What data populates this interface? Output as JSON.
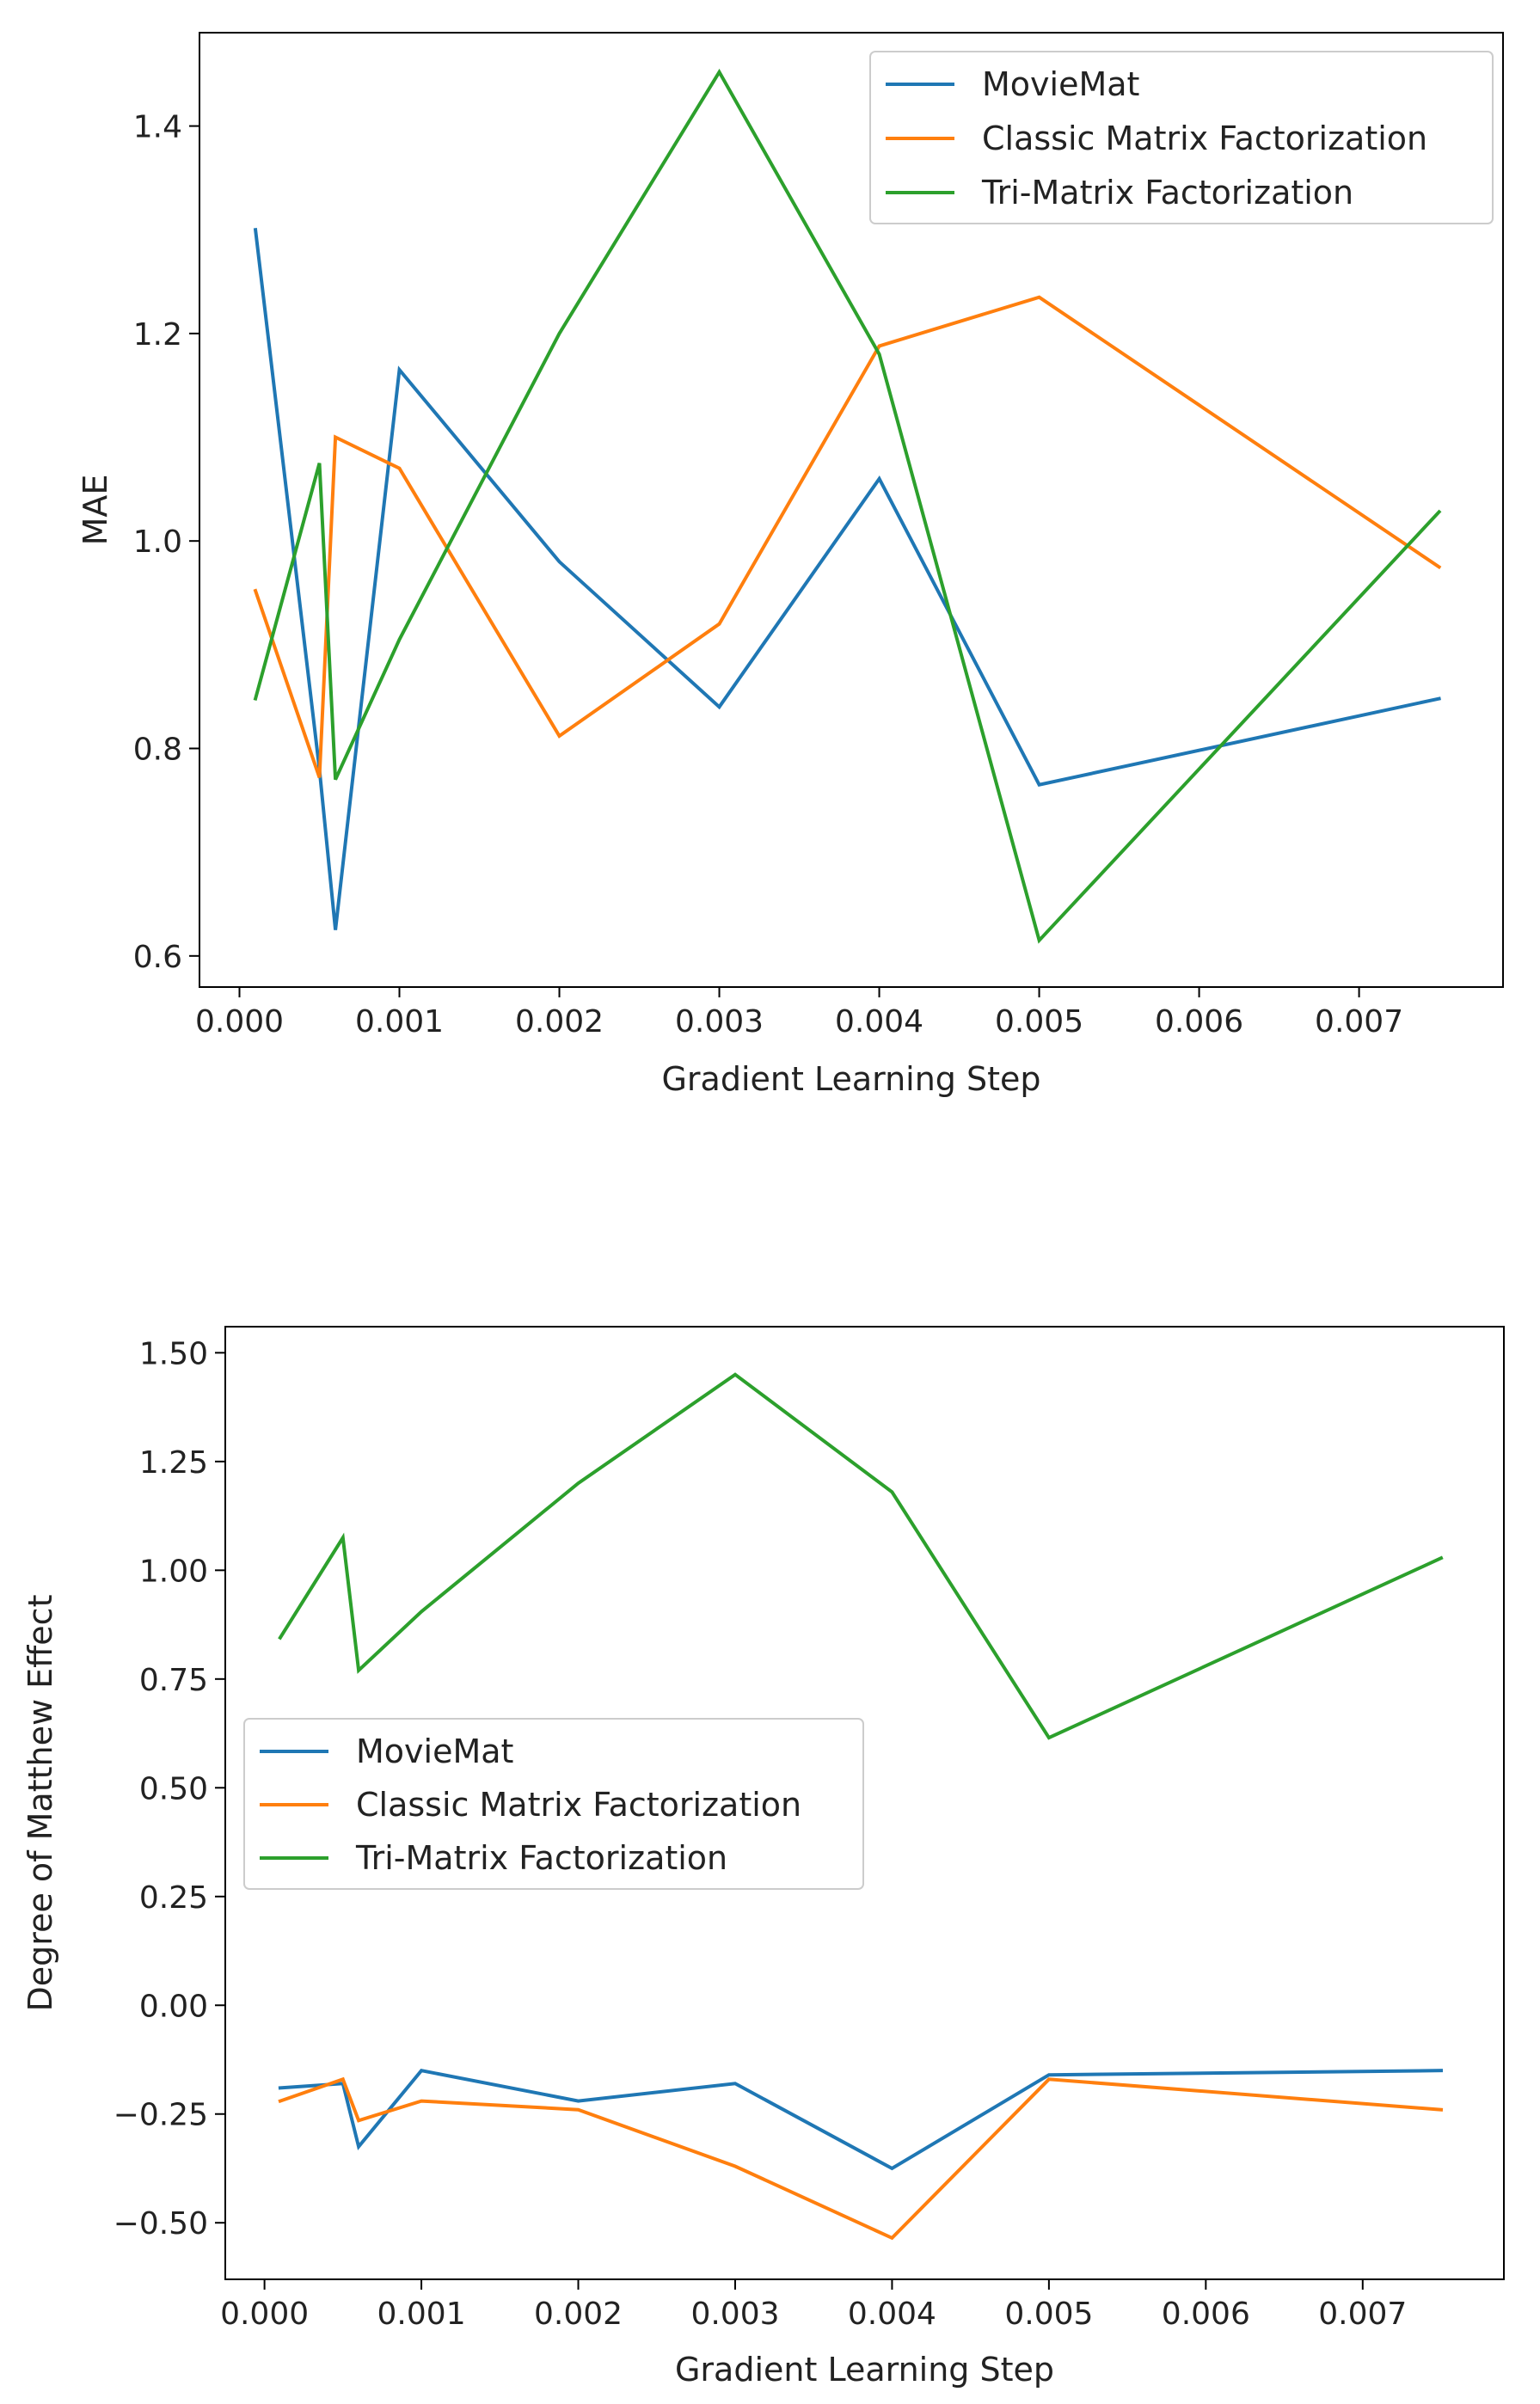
{
  "chart_data": [
    {
      "type": "line",
      "title": "",
      "xlabel": "Gradient Learning Step",
      "ylabel": "MAE",
      "xlim": [
        -0.00025,
        0.0079
      ],
      "ylim": [
        0.57,
        1.49
      ],
      "xticks": [
        0.0,
        0.001,
        0.002,
        0.003,
        0.004,
        0.005,
        0.006,
        0.007
      ],
      "xtick_labels": [
        "0.000",
        "0.001",
        "0.002",
        "0.003",
        "0.004",
        "0.005",
        "0.006",
        "0.007"
      ],
      "yticks": [
        0.6,
        0.8,
        1.0,
        1.2,
        1.4
      ],
      "ytick_labels": [
        "0.6",
        "0.8",
        "1.0",
        "1.2",
        "1.4"
      ],
      "grid": false,
      "legend_position": "top-right",
      "x": [
        0.0001,
        0.0005,
        0.0006,
        0.001,
        0.002,
        0.003,
        0.004,
        0.005,
        0.0075
      ],
      "series": [
        {
          "name": "MovieMat",
          "color": "#1f77b4",
          "values": [
            1.3,
            0.78,
            0.625,
            1.165,
            0.98,
            0.84,
            1.06,
            0.765,
            0.848
          ]
        },
        {
          "name": "Classic Matrix Factorization",
          "color": "#ff7f0e",
          "values": [
            0.952,
            0.772,
            1.1,
            1.07,
            0.812,
            0.92,
            1.188,
            1.235,
            0.975
          ]
        },
        {
          "name": "Tri-Matrix Factorization",
          "color": "#2ca02c",
          "values": [
            0.848,
            1.075,
            0.77,
            0.905,
            1.2,
            1.452,
            1.18,
            0.615,
            1.028
          ]
        }
      ]
    },
    {
      "type": "line",
      "title": "",
      "xlabel": "Gradient Learning Step",
      "ylabel": "Degree of Matthew Effect",
      "xlim": [
        -0.00025,
        0.0079
      ],
      "ylim": [
        -0.63,
        1.56
      ],
      "xticks": [
        0.0,
        0.001,
        0.002,
        0.003,
        0.004,
        0.005,
        0.006,
        0.007
      ],
      "xtick_labels": [
        "0.000",
        "0.001",
        "0.002",
        "0.003",
        "0.004",
        "0.005",
        "0.006",
        "0.007"
      ],
      "yticks": [
        1.5,
        1.25,
        1.0,
        0.75,
        0.5,
        0.25,
        0.0,
        -0.25,
        -0.5
      ],
      "ytick_labels": [
        "1.50",
        "1.25",
        "1.00",
        "0.75",
        "0.50",
        "0.25",
        "0.00",
        "−0.25",
        "−0.50"
      ],
      "grid": false,
      "legend_position": "center-left",
      "x": [
        0.0001,
        0.0005,
        0.0006,
        0.001,
        0.002,
        0.003,
        0.004,
        0.005,
        0.0075
      ],
      "series": [
        {
          "name": "MovieMat",
          "color": "#1f77b4",
          "values": [
            -0.19,
            -0.18,
            -0.325,
            -0.15,
            -0.22,
            -0.18,
            -0.375,
            -0.16,
            -0.15
          ]
        },
        {
          "name": "Classic Matrix Factorization",
          "color": "#ff7f0e",
          "values": [
            -0.22,
            -0.17,
            -0.265,
            -0.22,
            -0.24,
            -0.37,
            -0.535,
            -0.17,
            -0.24
          ]
        },
        {
          "name": "Tri-Matrix Factorization",
          "color": "#2ca02c",
          "values": [
            0.845,
            1.075,
            0.77,
            0.905,
            1.2,
            1.45,
            1.18,
            0.615,
            1.028
          ]
        }
      ]
    }
  ]
}
